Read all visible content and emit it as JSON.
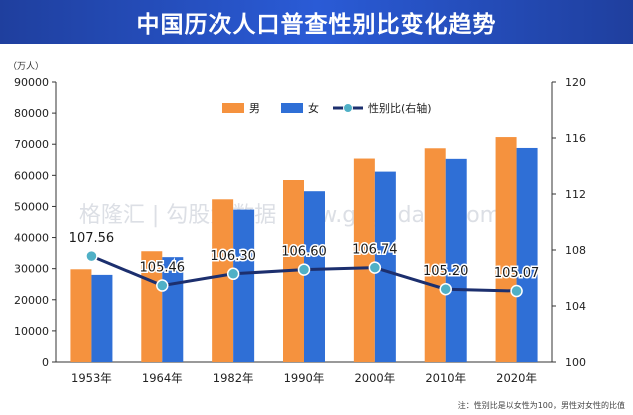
{
  "chart_data": {
    "type": "bar",
    "title": "中国历次人口普查性别比变化趋势",
    "left_unit": "（万人）",
    "categories": [
      "1953年",
      "1964年",
      "1982年",
      "1990年",
      "2000年",
      "2010年",
      "2020年"
    ],
    "series": [
      {
        "name": "男",
        "type": "bar",
        "axis": "left",
        "color": "#F5923E",
        "values": [
          29800,
          35600,
          52300,
          58500,
          65400,
          68700,
          72300
        ]
      },
      {
        "name": "女",
        "type": "bar",
        "axis": "left",
        "color": "#2F6FD6",
        "values": [
          28000,
          33700,
          49000,
          54900,
          61200,
          65300,
          68800
        ]
      },
      {
        "name": "性别比(右轴)",
        "type": "line",
        "axis": "right",
        "color": "#1C2F6E",
        "marker_color": "#4FB0C6",
        "values": [
          107.56,
          105.46,
          106.3,
          106.6,
          106.74,
          105.2,
          105.07
        ],
        "labels": [
          "107.56",
          "105.46",
          "106.30",
          "106.60",
          "106.74",
          "105.20",
          "105.07"
        ]
      }
    ],
    "ylim_left": [
      0,
      90000
    ],
    "yticks_left": [
      "0",
      "10000",
      "20000",
      "30000",
      "40000",
      "50000",
      "60000",
      "70000",
      "80000",
      "90000"
    ],
    "ylim_right": [
      100,
      120
    ],
    "yticks_right": [
      "100",
      "104",
      "108",
      "112",
      "116",
      "120"
    ],
    "legend_position": "top-center",
    "grid": false
  },
  "watermark": "格隆汇 | 勾股大数据 www.gogudata.com",
  "footnote": "注：性别比是以女性为100，男性对女性的比值"
}
